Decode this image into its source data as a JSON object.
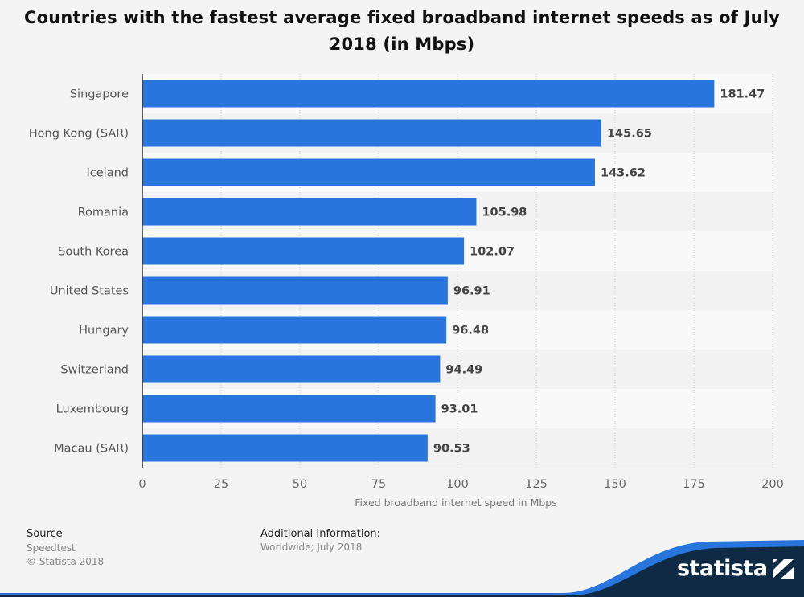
{
  "title": "Countries with the fastest average fixed broadband internet speeds as of July 2018 (in Mbps)",
  "colors": {
    "bar": "#2876dd",
    "background": "#f4f4f4",
    "brand": "#0f2a44"
  },
  "chart_data": {
    "type": "bar",
    "orientation": "horizontal",
    "categories": [
      "Singapore",
      "Hong Kong (SAR)",
      "Iceland",
      "Romania",
      "South Korea",
      "United States",
      "Hungary",
      "Switzerland",
      "Luxembourg",
      "Macau (SAR)"
    ],
    "values": [
      181.47,
      145.65,
      143.62,
      105.98,
      102.07,
      96.91,
      96.48,
      94.49,
      93.01,
      90.53
    ],
    "value_labels": [
      "181.47",
      "145.65",
      "143.62",
      "105.98",
      "102.07",
      "96.91",
      "96.48",
      "94.49",
      "93.01",
      "90.53"
    ],
    "xlabel": "Fixed broadband internet speed in Mbps",
    "ylabel": "",
    "xlim": [
      0,
      200
    ],
    "xticks": [
      0,
      25,
      50,
      75,
      100,
      125,
      150,
      175,
      200
    ],
    "grid": true
  },
  "footer": {
    "source_heading": "Source",
    "source_name": "Speedtest",
    "copyright": "© Statista 2018",
    "info_heading": "Additional Information:",
    "info_text": "Worldwide; July 2018",
    "brand": "statista"
  }
}
